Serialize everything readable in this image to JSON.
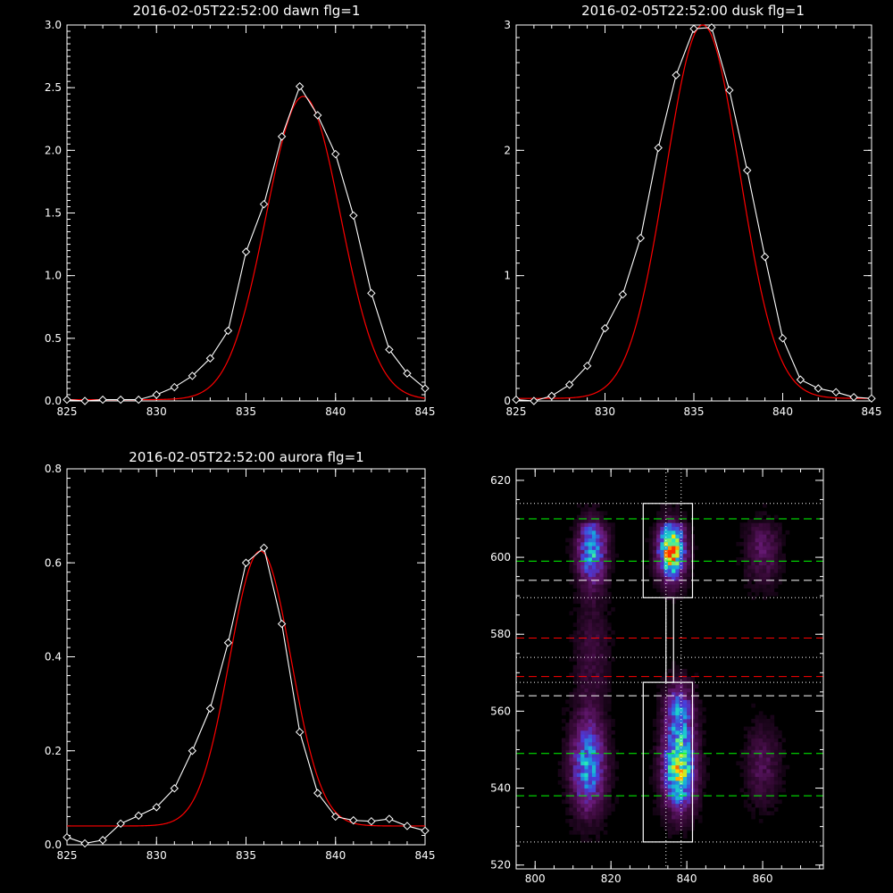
{
  "chart_data": [
    {
      "type": "line",
      "title": "2016-02-05T22:52:00 dawn flg=1",
      "xlim": [
        825,
        845
      ],
      "ylim": [
        0,
        3.0
      ],
      "x_ticks": [
        825,
        830,
        835,
        840,
        845
      ],
      "x_tick_labels": [
        "825",
        "830",
        "835",
        "840",
        "845"
      ],
      "y_ticks": [
        0,
        0.5,
        1.0,
        1.5,
        2.0,
        2.5,
        3.0
      ],
      "y_tick_labels": [
        "0.0",
        "0.5",
        "1.0",
        "1.5",
        "2.0",
        "2.5",
        "3.0"
      ],
      "series": [
        {
          "kind": "data",
          "color": "#ffffff",
          "marker": "diamond",
          "x": [
            825,
            826,
            827,
            828,
            829,
            830,
            831,
            832,
            833,
            834,
            835,
            836,
            837,
            838,
            839,
            840,
            841,
            842,
            843,
            844,
            845
          ],
          "y": [
            0.01,
            0.0,
            0.01,
            0.01,
            0.01,
            0.05,
            0.11,
            0.2,
            0.34,
            0.56,
            1.19,
            1.57,
            2.11,
            2.51,
            2.28,
            1.97,
            1.48,
            0.86,
            0.41,
            0.22,
            0.1
          ]
        },
        {
          "kind": "fit",
          "color": "#ff0000",
          "fit": {
            "a": 2.42,
            "mu": 838.2,
            "sigma": 2.08,
            "offset": 0.01
          }
        }
      ]
    },
    {
      "type": "line",
      "title": "2016-02-05T22:52:00 dusk flg=1",
      "xlim": [
        825,
        845
      ],
      "ylim": [
        0,
        3.0
      ],
      "x_ticks": [
        825,
        830,
        835,
        840,
        845
      ],
      "x_tick_labels": [
        "825",
        "830",
        "835",
        "840",
        "845"
      ],
      "y_ticks": [
        0,
        1,
        2,
        3
      ],
      "y_tick_labels": [
        "0",
        "1",
        "2",
        "3"
      ],
      "series": [
        {
          "kind": "data",
          "color": "#ffffff",
          "marker": "diamond",
          "x": [
            825,
            826,
            827,
            828,
            829,
            830,
            831,
            832,
            833,
            834,
            835,
            836,
            837,
            838,
            839,
            840,
            841,
            842,
            843,
            844,
            845
          ],
          "y": [
            0.01,
            0.0,
            0.04,
            0.13,
            0.28,
            0.58,
            0.85,
            1.3,
            2.02,
            2.6,
            2.97,
            2.98,
            2.48,
            1.84,
            1.15,
            0.5,
            0.17,
            0.1,
            0.07,
            0.03,
            0.02
          ]
        },
        {
          "kind": "fit",
          "color": "#ff0000",
          "fit": {
            "a": 2.98,
            "mu": 835.5,
            "sigma": 2.08,
            "offset": 0.02
          }
        }
      ]
    },
    {
      "type": "line",
      "title": "2016-02-05T22:52:00 aurora flg=1",
      "xlim": [
        825,
        845
      ],
      "ylim": [
        0,
        0.8
      ],
      "x_ticks": [
        825,
        830,
        835,
        840,
        845
      ],
      "x_tick_labels": [
        "825",
        "830",
        "835",
        "840",
        "845"
      ],
      "y_ticks": [
        0,
        0.2,
        0.4,
        0.6,
        0.8
      ],
      "y_tick_labels": [
        "0.0",
        "0.2",
        "0.4",
        "0.6",
        "0.8"
      ],
      "series": [
        {
          "kind": "data",
          "color": "#ffffff",
          "marker": "diamond",
          "x": [
            825,
            826,
            827,
            828,
            829,
            830,
            831,
            832,
            833,
            834,
            835,
            836,
            837,
            838,
            839,
            840,
            841,
            842,
            843,
            844,
            845
          ],
          "y": [
            0.016,
            0.003,
            0.01,
            0.045,
            0.062,
            0.08,
            0.12,
            0.2,
            0.29,
            0.43,
            0.6,
            0.632,
            0.47,
            0.24,
            0.11,
            0.06,
            0.052,
            0.05,
            0.055,
            0.04,
            0.03
          ]
        },
        {
          "kind": "fit",
          "color": "#ff0000",
          "fit": {
            "a": 0.585,
            "mu": 835.8,
            "sigma": 1.72,
            "offset": 0.04
          }
        }
      ]
    },
    {
      "type": "heatmap",
      "xlim": [
        795,
        876
      ],
      "ylim": [
        519,
        623
      ],
      "x_ticks": [
        800,
        820,
        840,
        860
      ],
      "x_tick_labels": [
        "800",
        "820",
        "840",
        "860"
      ],
      "y_ticks": [
        520,
        540,
        560,
        580,
        600,
        620
      ],
      "y_tick_labels": [
        "520",
        "540",
        "560",
        "580",
        "600",
        "620"
      ],
      "colormap": [
        "#000000",
        "#3a0a3a",
        "#6a1a7a",
        "#4a3ad8",
        "#1a9ae0",
        "#20e8c0",
        "#a8f040",
        "#ffe000",
        "#ff3000"
      ],
      "blobs": [
        {
          "x": 815,
          "y": 602,
          "sx": 2.5,
          "sy": 6,
          "a": 0.52
        },
        {
          "x": 814,
          "y": 546,
          "sx": 3,
          "sy": 8,
          "a": 0.5
        },
        {
          "x": 836,
          "y": 602,
          "sx": 2.3,
          "sy": 5,
          "a": 0.92
        },
        {
          "x": 838,
          "y": 545,
          "sx": 2.8,
          "sy": 7,
          "a": 0.75
        },
        {
          "x": 838,
          "y": 560,
          "sx": 2.5,
          "sy": 5,
          "a": 0.4
        },
        {
          "x": 860,
          "y": 602,
          "sx": 3,
          "sy": 6,
          "a": 0.18
        },
        {
          "x": 860,
          "y": 546,
          "sx": 3,
          "sy": 7,
          "a": 0.16
        },
        {
          "x": 815,
          "y": 575,
          "sx": 3,
          "sy": 10,
          "a": 0.12
        }
      ],
      "boxes": [
        {
          "x0": 828.5,
          "x1": 841.5,
          "y0": 589.5,
          "y1": 614
        },
        {
          "x0": 828.5,
          "x1": 841.5,
          "y0": 526,
          "y1": 567.5
        },
        {
          "x0": 834.5,
          "x1": 836.5,
          "y0": 567.5,
          "y1": 589.5
        }
      ],
      "hlines": [
        {
          "y": 610,
          "color": "#00ff00",
          "style": "dashed"
        },
        {
          "y": 599,
          "color": "#00ff00",
          "style": "dashed"
        },
        {
          "y": 594,
          "color": "#ffffff",
          "style": "dashed"
        },
        {
          "y": 579,
          "color": "#ff0000",
          "style": "dashed"
        },
        {
          "y": 569,
          "color": "#ff0000",
          "style": "dashed"
        },
        {
          "y": 564,
          "color": "#ffffff",
          "style": "dashed"
        },
        {
          "y": 549,
          "color": "#00ff00",
          "style": "dashed"
        },
        {
          "y": 538,
          "color": "#00ff00",
          "style": "dashed"
        },
        {
          "y": 614,
          "color": "#ffffff",
          "style": "dotted"
        },
        {
          "y": 589.5,
          "color": "#ffffff",
          "style": "dotted"
        },
        {
          "y": 574,
          "color": "#ffffff",
          "style": "dotted"
        },
        {
          "y": 567.5,
          "color": "#ffffff",
          "style": "dotted"
        },
        {
          "y": 526,
          "color": "#ffffff",
          "style": "dotted"
        }
      ],
      "vlines": [
        {
          "x": 834.5,
          "color": "#ffffff",
          "style": "dotted"
        },
        {
          "x": 838.5,
          "color": "#ffffff",
          "style": "dotted"
        }
      ]
    }
  ]
}
